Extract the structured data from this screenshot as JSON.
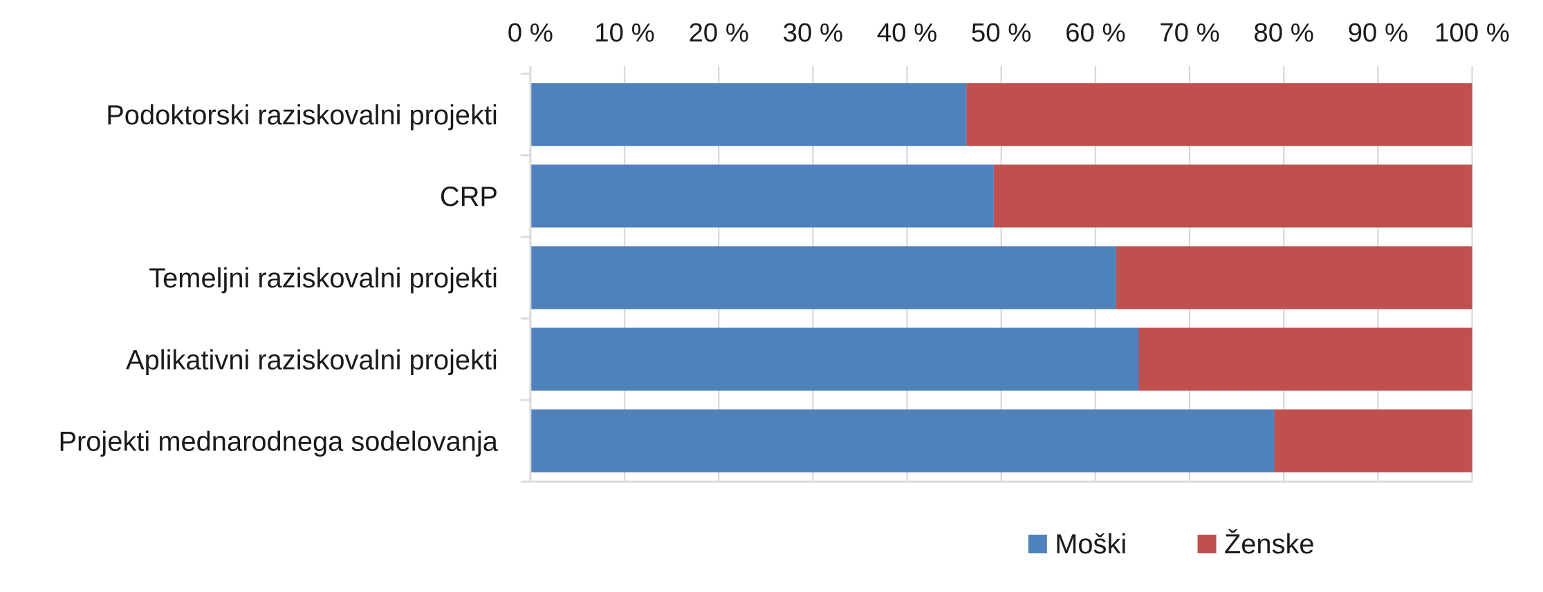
{
  "chart_data": {
    "type": "bar",
    "orientation": "horizontal",
    "stacked": "percent",
    "categories": [
      "Podoktorski raziskovalni projekti",
      "CRP",
      "Temeljni raziskovalni projekti",
      "Aplikativni raziskovalni projekti",
      "Projekti mednarodnega sodelovanja"
    ],
    "series": [
      {
        "name": "Moški",
        "color": "#4f81bd",
        "values": [
          46.3,
          49.2,
          62.2,
          64.6,
          79.0
        ]
      },
      {
        "name": "Ženske",
        "color": "#c0504d",
        "values": [
          53.7,
          50.8,
          37.8,
          35.4,
          21.0
        ]
      }
    ],
    "x_ticks": [
      "0 %",
      "10 %",
      "20 %",
      "30 %",
      "40 %",
      "50 %",
      "60 %",
      "70 %",
      "80 %",
      "90 %",
      "100 %"
    ],
    "xlim": [
      0,
      100
    ],
    "x_axis_position": "top",
    "grid": true,
    "legend": "bottom"
  }
}
